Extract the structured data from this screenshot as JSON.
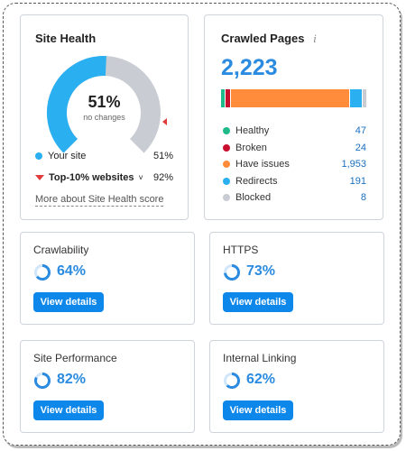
{
  "site_health": {
    "title": "Site Health",
    "percent": "51%",
    "sub": "no changes",
    "score_fraction": 0.51,
    "your_site_label": "Your site",
    "your_site_value": "51%",
    "top_label": "Top-10% websites",
    "top_value": "92%",
    "link": "More about Site Health score",
    "colors": {
      "your_site": "#2ab0f0",
      "top_marker": "#e23b3b",
      "remaining": "#c9ccd3"
    }
  },
  "crawled": {
    "title": "Crawled Pages",
    "info_icon": "info-icon",
    "total": "2,223",
    "rows": [
      {
        "label": "Healthy",
        "value": "47",
        "color": "#1fb98a",
        "count": 47
      },
      {
        "label": "Broken",
        "value": "24",
        "color": "#c8102e",
        "count": 24
      },
      {
        "label": "Have issues",
        "value": "1,953",
        "color": "#ff8c3a",
        "count": 1953
      },
      {
        "label": "Redirects",
        "value": "191",
        "color": "#2ab0f0",
        "count": 191
      },
      {
        "label": "Blocked",
        "value": "8",
        "color": "#c9ccd3",
        "count": 8
      }
    ]
  },
  "metrics": [
    {
      "label": "Crawlability",
      "value": "64%",
      "fraction": 0.64,
      "button": "View details"
    },
    {
      "label": "HTTPS",
      "value": "73%",
      "fraction": 0.73,
      "button": "View details"
    },
    {
      "label": "Site Performance",
      "value": "82%",
      "fraction": 0.82,
      "button": "View details"
    },
    {
      "label": "Internal Linking",
      "value": "62%",
      "fraction": 0.62,
      "button": "View details"
    }
  ]
}
